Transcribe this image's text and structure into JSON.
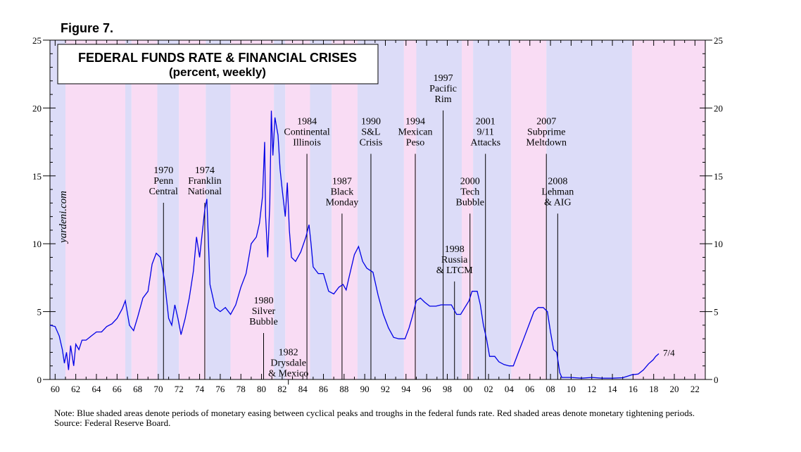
{
  "figure_label": "Figure 7.",
  "watermark": "yardeni.com",
  "note_line": "Note: Blue shaded areas denote periods of monetary easing between cyclical peaks and troughs in the federal funds rate. Red shaded areas denote monetary tightening periods.",
  "source_line": "Source: Federal Reserve Board.",
  "colors": {
    "easing": "#dcdcf8",
    "tightening": "#f9dcf4",
    "line": "#0000e6"
  },
  "chart_data": {
    "type": "line",
    "title": "FEDERAL FUNDS RATE & FINANCIAL CRISES",
    "subtitle": "(percent, weekly)",
    "xlim": [
      1959.5,
      2023.0
    ],
    "ylim": [
      0,
      25
    ],
    "y_ticks": [
      0,
      5,
      10,
      15,
      20,
      25
    ],
    "x_tick_labels": [
      "60",
      "62",
      "64",
      "66",
      "68",
      "70",
      "72",
      "74",
      "76",
      "78",
      "80",
      "82",
      "84",
      "86",
      "88",
      "90",
      "92",
      "94",
      "96",
      "98",
      "00",
      "02",
      "04",
      "06",
      "08",
      "10",
      "12",
      "14",
      "16",
      "18",
      "20",
      "22"
    ],
    "end_label": "7/4",
    "grid": false,
    "shading": [
      {
        "type": "easing",
        "start": 1959.5,
        "end": 1961.0
      },
      {
        "type": "tightening",
        "start": 1961.0,
        "end": 1966.8
      },
      {
        "type": "easing",
        "start": 1966.8,
        "end": 1967.4
      },
      {
        "type": "tightening",
        "start": 1967.4,
        "end": 1969.9
      },
      {
        "type": "easing",
        "start": 1969.9,
        "end": 1972.0
      },
      {
        "type": "tightening",
        "start": 1972.0,
        "end": 1974.6
      },
      {
        "type": "easing",
        "start": 1974.6,
        "end": 1977.0
      },
      {
        "type": "tightening",
        "start": 1977.0,
        "end": 1981.2
      },
      {
        "type": "easing",
        "start": 1981.2,
        "end": 1982.3
      },
      {
        "type": "tightening",
        "start": 1982.3,
        "end": 1984.7
      },
      {
        "type": "easing",
        "start": 1984.7,
        "end": 1986.8
      },
      {
        "type": "tightening",
        "start": 1986.8,
        "end": 1989.3
      },
      {
        "type": "easing",
        "start": 1989.3,
        "end": 1993.8
      },
      {
        "type": "tightening",
        "start": 1993.8,
        "end": 1995.0
      },
      {
        "type": "easing",
        "start": 1995.0,
        "end": 1999.4
      },
      {
        "type": "tightening",
        "start": 1999.4,
        "end": 2000.5
      },
      {
        "type": "easing",
        "start": 2000.5,
        "end": 2004.2
      },
      {
        "type": "tightening",
        "start": 2004.2,
        "end": 2007.6
      },
      {
        "type": "easing",
        "start": 2007.6,
        "end": 2015.9
      },
      {
        "type": "tightening",
        "start": 2015.9,
        "end": 2023.0
      }
    ],
    "crises": [
      {
        "x": 1970.5,
        "lines": [
          "1970",
          "Penn",
          "Central"
        ],
        "label_y": 15.2
      },
      {
        "x": 1974.5,
        "lines": [
          "1974",
          "Franklin",
          "National"
        ],
        "label_y": 15.2
      },
      {
        "x": 1980.2,
        "lines": [
          "1980",
          "Silver",
          "Bubble"
        ],
        "label_y": 5.6
      },
      {
        "x": 1982.6,
        "lines": [
          "1982",
          "Drysdale",
          "& Mexico"
        ],
        "label_y": 1.8
      },
      {
        "x": 1984.4,
        "lines": [
          "1984",
          "Continental",
          "Illinois"
        ],
        "label_y": 18.8
      },
      {
        "x": 1987.8,
        "lines": [
          "1987",
          "Black",
          "Monday"
        ],
        "label_y": 14.4
      },
      {
        "x": 1990.6,
        "lines": [
          "1990",
          "S&L",
          "Crisis"
        ],
        "label_y": 18.8
      },
      {
        "x": 1994.9,
        "lines": [
          "1994",
          "Mexican",
          "Peso"
        ],
        "label_y": 18.8
      },
      {
        "x": 1997.6,
        "lines": [
          "1997",
          "Pacific",
          "Rim"
        ],
        "label_y": 22.0
      },
      {
        "x": 1998.7,
        "lines": [
          "1998",
          "Russia",
          "& LTCM"
        ],
        "label_y": 9.4
      },
      {
        "x": 2000.2,
        "lines": [
          "2000",
          "Tech",
          "Bubble"
        ],
        "label_y": 14.4
      },
      {
        "x": 2001.7,
        "lines": [
          "2001",
          "9/11",
          "Attacks"
        ],
        "label_y": 18.8
      },
      {
        "x": 2007.6,
        "lines": [
          "2007",
          "Subprime",
          "Meltdown"
        ],
        "label_y": 18.8
      },
      {
        "x": 2008.7,
        "lines": [
          "2008",
          "Lehman",
          "& AIG"
        ],
        "label_y": 14.4
      }
    ],
    "series": [
      {
        "points": [
          [
            1959.5,
            4.0
          ],
          [
            1960.0,
            3.9
          ],
          [
            1960.4,
            3.2
          ],
          [
            1960.7,
            2.2
          ],
          [
            1960.9,
            1.2
          ],
          [
            1961.1,
            2.0
          ],
          [
            1961.3,
            0.7
          ],
          [
            1961.5,
            2.5
          ],
          [
            1961.8,
            1.0
          ],
          [
            1962.0,
            2.6
          ],
          [
            1962.3,
            2.2
          ],
          [
            1962.6,
            2.9
          ],
          [
            1963.0,
            2.9
          ],
          [
            1963.5,
            3.2
          ],
          [
            1964.0,
            3.5
          ],
          [
            1964.5,
            3.5
          ],
          [
            1965.0,
            3.9
          ],
          [
            1965.5,
            4.1
          ],
          [
            1966.0,
            4.5
          ],
          [
            1966.5,
            5.2
          ],
          [
            1966.8,
            5.8
          ],
          [
            1967.2,
            4.0
          ],
          [
            1967.6,
            3.6
          ],
          [
            1968.0,
            4.6
          ],
          [
            1968.5,
            6.0
          ],
          [
            1969.0,
            6.5
          ],
          [
            1969.4,
            8.5
          ],
          [
            1969.8,
            9.3
          ],
          [
            1970.2,
            9.0
          ],
          [
            1970.6,
            7.3
          ],
          [
            1971.0,
            4.5
          ],
          [
            1971.3,
            4.0
          ],
          [
            1971.6,
            5.5
          ],
          [
            1971.9,
            4.5
          ],
          [
            1972.2,
            3.3
          ],
          [
            1972.6,
            4.5
          ],
          [
            1973.0,
            6.0
          ],
          [
            1973.4,
            8.0
          ],
          [
            1973.7,
            10.5
          ],
          [
            1974.0,
            9.0
          ],
          [
            1974.5,
            12.5
          ],
          [
            1974.7,
            13.3
          ],
          [
            1975.0,
            7.0
          ],
          [
            1975.5,
            5.3
          ],
          [
            1976.0,
            5.0
          ],
          [
            1976.5,
            5.3
          ],
          [
            1977.0,
            4.8
          ],
          [
            1977.5,
            5.5
          ],
          [
            1978.0,
            6.8
          ],
          [
            1978.5,
            7.8
          ],
          [
            1979.0,
            10.0
          ],
          [
            1979.5,
            10.5
          ],
          [
            1979.8,
            11.5
          ],
          [
            1980.1,
            13.5
          ],
          [
            1980.3,
            17.5
          ],
          [
            1980.4,
            12.0
          ],
          [
            1980.6,
            9.0
          ],
          [
            1980.8,
            13.0
          ],
          [
            1980.95,
            19.8
          ],
          [
            1981.1,
            16.5
          ],
          [
            1981.3,
            19.3
          ],
          [
            1981.6,
            18.0
          ],
          [
            1981.8,
            15.5
          ],
          [
            1982.0,
            14.0
          ],
          [
            1982.3,
            12.0
          ],
          [
            1982.5,
            14.5
          ],
          [
            1982.7,
            11.0
          ],
          [
            1982.9,
            9.0
          ],
          [
            1983.3,
            8.7
          ],
          [
            1983.8,
            9.4
          ],
          [
            1984.3,
            10.5
          ],
          [
            1984.6,
            11.4
          ],
          [
            1984.8,
            10.0
          ],
          [
            1985.0,
            8.3
          ],
          [
            1985.5,
            7.8
          ],
          [
            1986.0,
            7.8
          ],
          [
            1986.5,
            6.5
          ],
          [
            1987.0,
            6.3
          ],
          [
            1987.5,
            6.8
          ],
          [
            1987.9,
            7.0
          ],
          [
            1988.2,
            6.6
          ],
          [
            1988.5,
            7.6
          ],
          [
            1989.0,
            9.2
          ],
          [
            1989.4,
            9.8
          ],
          [
            1989.8,
            8.7
          ],
          [
            1990.2,
            8.2
          ],
          [
            1990.8,
            7.9
          ],
          [
            1991.3,
            6.2
          ],
          [
            1991.8,
            4.8
          ],
          [
            1992.3,
            3.8
          ],
          [
            1992.8,
            3.1
          ],
          [
            1993.3,
            3.0
          ],
          [
            1993.9,
            3.0
          ],
          [
            1994.3,
            3.8
          ],
          [
            1994.6,
            4.6
          ],
          [
            1995.0,
            5.8
          ],
          [
            1995.4,
            6.0
          ],
          [
            1995.8,
            5.7
          ],
          [
            1996.3,
            5.4
          ],
          [
            1996.9,
            5.4
          ],
          [
            1997.4,
            5.5
          ],
          [
            1997.9,
            5.5
          ],
          [
            1998.4,
            5.5
          ],
          [
            1998.9,
            4.8
          ],
          [
            1999.3,
            4.8
          ],
          [
            1999.7,
            5.3
          ],
          [
            2000.1,
            5.8
          ],
          [
            2000.4,
            6.5
          ],
          [
            2000.9,
            6.5
          ],
          [
            2001.2,
            5.5
          ],
          [
            2001.5,
            4.0
          ],
          [
            2001.8,
            3.0
          ],
          [
            2002.1,
            1.7
          ],
          [
            2002.6,
            1.7
          ],
          [
            2003.0,
            1.3
          ],
          [
            2003.5,
            1.1
          ],
          [
            2004.0,
            1.0
          ],
          [
            2004.4,
            1.0
          ],
          [
            2004.9,
            2.0
          ],
          [
            2005.4,
            3.0
          ],
          [
            2005.9,
            4.0
          ],
          [
            2006.4,
            5.0
          ],
          [
            2006.8,
            5.3
          ],
          [
            2007.3,
            5.3
          ],
          [
            2007.7,
            5.0
          ],
          [
            2008.0,
            3.5
          ],
          [
            2008.3,
            2.2
          ],
          [
            2008.6,
            2.0
          ],
          [
            2008.9,
            0.5
          ],
          [
            2009.1,
            0.15
          ],
          [
            2010.0,
            0.15
          ],
          [
            2011.0,
            0.1
          ],
          [
            2012.0,
            0.15
          ],
          [
            2013.0,
            0.1
          ],
          [
            2014.0,
            0.1
          ],
          [
            2015.0,
            0.13
          ],
          [
            2015.9,
            0.35
          ],
          [
            2016.5,
            0.4
          ],
          [
            2017.0,
            0.7
          ],
          [
            2017.5,
            1.15
          ],
          [
            2017.95,
            1.45
          ],
          [
            2018.2,
            1.7
          ],
          [
            2018.5,
            1.9
          ]
        ]
      }
    ]
  }
}
